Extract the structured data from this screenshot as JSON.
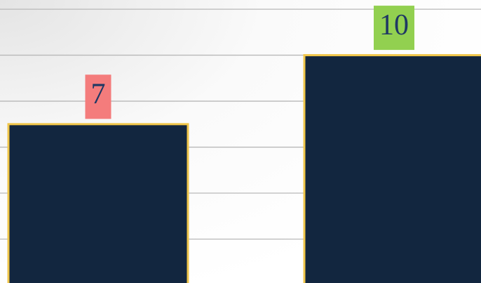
{
  "chart_data": {
    "type": "bar",
    "categories": [
      null,
      null
    ],
    "values": [
      7,
      10
    ],
    "color": "#12263f",
    "edge_color": "#f0c64a",
    "label_colors": [
      "#f47c7c",
      "#92d050"
    ],
    "ylim": [
      0,
      12.4
    ],
    "yticks": [
      2,
      4,
      6,
      8,
      10,
      12
    ],
    "grid": true
  }
}
